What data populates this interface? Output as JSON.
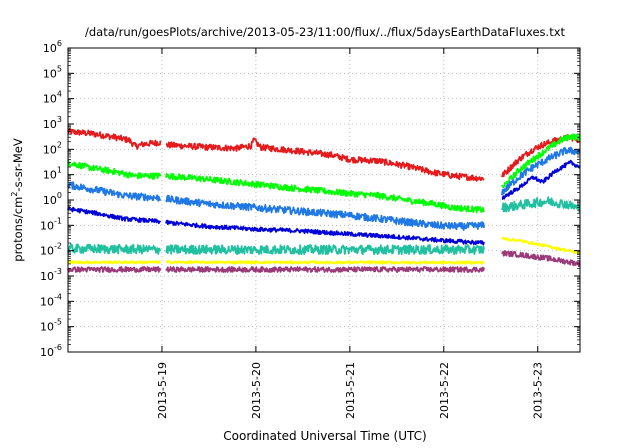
{
  "chart_data": {
    "type": "line",
    "title": "/data/run/goesPlots/archive/2013-05-23/11:00/flux/../flux/5daysEarthDataFluxes.txt",
    "xlabel": "Coordinated Universal Time (UTC)",
    "ylabel": {
      "prefix": "protons/cm",
      "superscript": "2",
      "suffix": "-s-sr-MeV"
    },
    "yscale": "log",
    "ylim_exponents": [
      -6,
      6
    ],
    "xlim_days": [
      18.0,
      23.45
    ],
    "grid": true,
    "legend": "none",
    "x_ticks": [
      {
        "day": 19,
        "label": "2013-5-19"
      },
      {
        "day": 20,
        "label": "2013-5-20"
      },
      {
        "day": 21,
        "label": "2013-5-21"
      },
      {
        "day": 22,
        "label": "2013-5-22"
      },
      {
        "day": 23,
        "label": "2013-5-23"
      }
    ],
    "y_tick_exponents": [
      -6,
      -5,
      -4,
      -3,
      -2,
      -1,
      0,
      1,
      2,
      3,
      4,
      5,
      6
    ],
    "data_gaps": [
      [
        18.99,
        19.04
      ],
      [
        22.43,
        22.62
      ]
    ],
    "series": [
      {
        "color": "#e41a1c",
        "noise": 0.12,
        "points": [
          [
            18.0,
            500
          ],
          [
            18.25,
            420
          ],
          [
            18.5,
            300
          ],
          [
            18.65,
            230
          ],
          [
            18.72,
            130
          ],
          [
            18.8,
            160
          ],
          [
            18.99,
            190
          ],
          [
            19.04,
            150
          ],
          [
            19.5,
            120
          ],
          [
            19.8,
            110
          ],
          [
            19.95,
            140
          ],
          [
            19.98,
            230
          ],
          [
            20.05,
            120
          ],
          [
            20.4,
            90
          ],
          [
            20.8,
            60
          ],
          [
            21.0,
            40
          ],
          [
            21.3,
            35
          ],
          [
            21.6,
            22
          ],
          [
            21.9,
            12
          ],
          [
            22.1,
            9
          ],
          [
            22.43,
            7
          ],
          [
            22.62,
            9
          ],
          [
            22.8,
            40
          ],
          [
            22.95,
            100
          ],
          [
            23.05,
            150
          ],
          [
            23.2,
            230
          ],
          [
            23.35,
            300
          ],
          [
            23.45,
            230
          ]
        ]
      },
      {
        "color": "#00ff00",
        "noise": 0.12,
        "points": [
          [
            18.0,
            30
          ],
          [
            18.2,
            20
          ],
          [
            18.5,
            13
          ],
          [
            18.7,
            9
          ],
          [
            18.99,
            9
          ],
          [
            19.04,
            9
          ],
          [
            19.4,
            7
          ],
          [
            19.8,
            5
          ],
          [
            20.2,
            3.5
          ],
          [
            20.6,
            2.5
          ],
          [
            21.0,
            1.8
          ],
          [
            21.3,
            1.5
          ],
          [
            21.6,
            1.0
          ],
          [
            21.9,
            0.7
          ],
          [
            22.1,
            0.5
          ],
          [
            22.43,
            0.4
          ],
          [
            22.62,
            3
          ],
          [
            22.8,
            15
          ],
          [
            22.95,
            40
          ],
          [
            23.1,
            100
          ],
          [
            23.25,
            230
          ],
          [
            23.35,
            330
          ],
          [
            23.45,
            280
          ]
        ]
      },
      {
        "color": "#1f78e6",
        "noise": 0.14,
        "points": [
          [
            18.0,
            4
          ],
          [
            18.3,
            2.5
          ],
          [
            18.6,
            1.5
          ],
          [
            18.99,
            1.2
          ],
          [
            19.04,
            1.1
          ],
          [
            19.5,
            0.7
          ],
          [
            20.0,
            0.5
          ],
          [
            20.5,
            0.35
          ],
          [
            21.0,
            0.25
          ],
          [
            21.5,
            0.15
          ],
          [
            21.9,
            0.1
          ],
          [
            22.2,
            0.09
          ],
          [
            22.43,
            0.1
          ],
          [
            22.62,
            2
          ],
          [
            22.8,
            8
          ],
          [
            22.95,
            20
          ],
          [
            23.1,
            40
          ],
          [
            23.3,
            90
          ],
          [
            23.45,
            80
          ]
        ]
      },
      {
        "color": "#0000d8",
        "noise": 0.08,
        "points": [
          [
            18.0,
            0.45
          ],
          [
            18.3,
            0.3
          ],
          [
            18.6,
            0.18
          ],
          [
            18.99,
            0.14
          ],
          [
            19.04,
            0.13
          ],
          [
            19.5,
            0.09
          ],
          [
            20.0,
            0.07
          ],
          [
            20.5,
            0.06
          ],
          [
            21.0,
            0.045
          ],
          [
            21.5,
            0.035
          ],
          [
            22.0,
            0.025
          ],
          [
            22.43,
            0.02
          ],
          [
            22.62,
            1.2
          ],
          [
            22.8,
            3
          ],
          [
            22.95,
            8
          ],
          [
            23.05,
            5
          ],
          [
            23.2,
            15
          ],
          [
            23.35,
            30
          ],
          [
            23.45,
            20
          ]
        ]
      },
      {
        "color": "#20c0a0",
        "noise": 0.18,
        "points": [
          [
            18.0,
            0.012
          ],
          [
            18.99,
            0.011
          ],
          [
            19.04,
            0.011
          ],
          [
            20.5,
            0.011
          ],
          [
            22.43,
            0.011
          ],
          [
            22.62,
            0.5
          ],
          [
            22.9,
            0.7
          ],
          [
            23.1,
            0.9
          ],
          [
            23.3,
            0.7
          ],
          [
            23.45,
            0.45
          ]
        ]
      },
      {
        "color": "#ffff00",
        "noise": 0.05,
        "points": [
          [
            18.0,
            0.0035
          ],
          [
            18.99,
            0.0035
          ],
          [
            19.04,
            0.0035
          ],
          [
            22.43,
            0.0034
          ],
          [
            22.62,
            0.03
          ],
          [
            22.8,
            0.025
          ],
          [
            23.1,
            0.015
          ],
          [
            23.45,
            0.008
          ]
        ]
      },
      {
        "color": "#9a3a78",
        "noise": 0.1,
        "points": [
          [
            18.0,
            0.0018
          ],
          [
            18.99,
            0.0018
          ],
          [
            19.04,
            0.0018
          ],
          [
            22.43,
            0.0018
          ],
          [
            22.62,
            0.008
          ],
          [
            22.8,
            0.007
          ],
          [
            23.1,
            0.005
          ],
          [
            23.45,
            0.003
          ]
        ]
      }
    ]
  }
}
